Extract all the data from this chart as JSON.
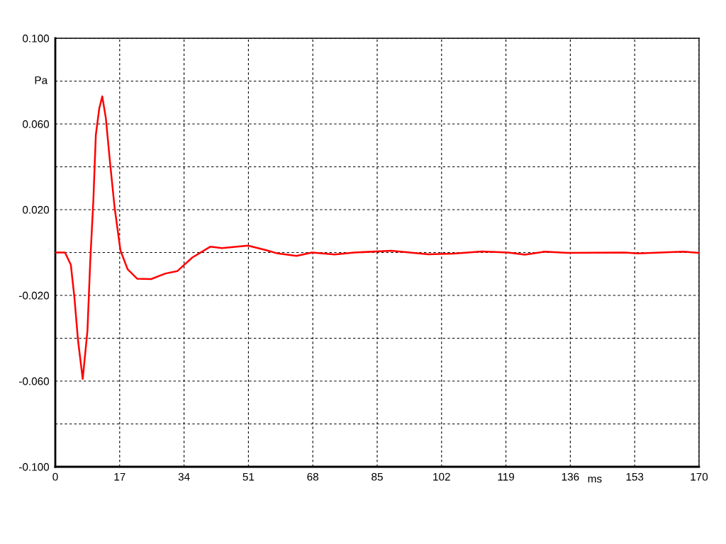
{
  "chart_data": {
    "type": "line",
    "xlabel": "ms",
    "ylabel": "Pa",
    "x": [
      0,
      2.56,
      4.1,
      5.05,
      6.0,
      7.24,
      8.49,
      9.24,
      10.05,
      10.7,
      11.6,
      12.4,
      13.35,
      14.4,
      15.67,
      17.2,
      19.1,
      21.6,
      25.3,
      29.1,
      32.2,
      36.2,
      40.9,
      44.0,
      50.9,
      55.9,
      58.4,
      63.7,
      67.8,
      73.8,
      79,
      88.7,
      98.5,
      105.2,
      112.7,
      119.5,
      124,
      129.2,
      135.2,
      150.2,
      153.9,
      165.8,
      170
    ],
    "series": [
      {
        "color": "#ff0000",
        "values": [
          0,
          0,
          -0.0057,
          -0.021,
          -0.041,
          -0.059,
          -0.0365,
          -0.0035,
          0.0243,
          0.0548,
          0.0672,
          0.0729,
          0.0627,
          0.0429,
          0.0209,
          0.001,
          -0.0078,
          -0.0122,
          -0.0124,
          -0.0098,
          -0.0087,
          -0.0023,
          0.0027,
          0.0021,
          0.0032,
          0.001,
          -0.0003,
          -0.0016,
          0,
          -0.0009,
          0,
          0.0008,
          -0.0008,
          -0.0005,
          0.0005,
          0,
          -0.001,
          0.0004,
          -0.0002,
          0,
          -0.0004,
          0.0004,
          -0.0002
        ]
      }
    ],
    "xlim": [
      0,
      170
    ],
    "ylim": [
      -0.1,
      0.1
    ],
    "xticks": [
      0,
      17,
      34,
      51,
      68,
      85,
      102,
      119,
      136,
      153,
      170
    ],
    "yticks": [
      {
        "value": -0.1,
        "label": "-0.100"
      },
      {
        "value": -0.08,
        "label": null
      },
      {
        "value": -0.06,
        "label": "-0.060"
      },
      {
        "value": -0.04,
        "label": null
      },
      {
        "value": -0.02,
        "label": "-0.020"
      },
      {
        "value": 0,
        "label": null
      },
      {
        "value": 0.02,
        "label": "0.020"
      },
      {
        "value": 0.04,
        "label": null
      },
      {
        "value": 0.06,
        "label": "0.060"
      },
      {
        "value": 0.08,
        "label": null
      },
      {
        "value": 0.1,
        "label": "0.100"
      }
    ],
    "grid": true,
    "line_style": "solid",
    "marker": "none"
  }
}
